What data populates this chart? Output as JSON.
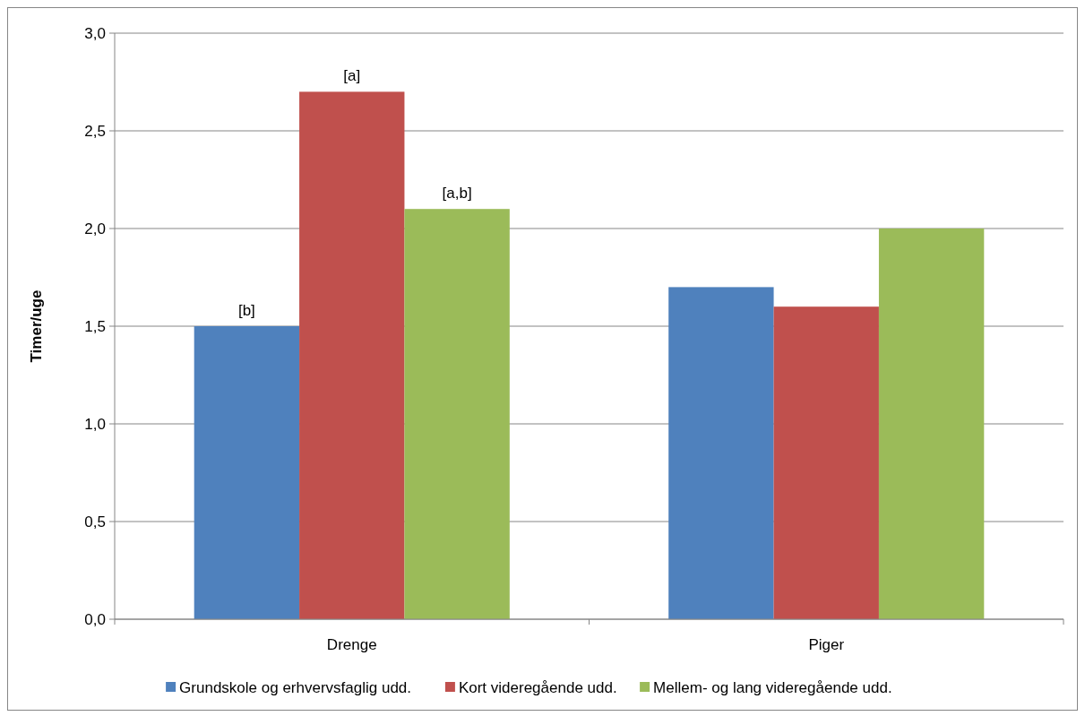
{
  "chart_data": {
    "type": "bar",
    "ylabel": "Timer/uge",
    "categories": [
      "Drenge",
      "Piger"
    ],
    "series": [
      {
        "name": "Grundskole og erhvervsfaglig udd.",
        "color": "#4f81bd",
        "values": [
          1.5,
          1.7
        ]
      },
      {
        "name": "Kort videregående udd.",
        "color": "#c0504d",
        "values": [
          2.7,
          1.6
        ]
      },
      {
        "name": "Mellem- og lang videregående udd.",
        "color": "#9bbb59",
        "values": [
          2.1,
          2.0
        ]
      }
    ],
    "ylim": [
      0,
      3
    ],
    "yticks": [
      {
        "value": 0,
        "label": "0,0"
      },
      {
        "value": 0.5,
        "label": "0,5"
      },
      {
        "value": 1,
        "label": "1,0"
      },
      {
        "value": 1.5,
        "label": "1,5"
      },
      {
        "value": 2,
        "label": "2,0"
      },
      {
        "value": 2.5,
        "label": "2,5"
      },
      {
        "value": 3,
        "label": "3,0"
      }
    ],
    "grid": "y",
    "legend": "bottom",
    "annotations": [
      "[b]",
      "[a]",
      "[a,b]"
    ]
  }
}
